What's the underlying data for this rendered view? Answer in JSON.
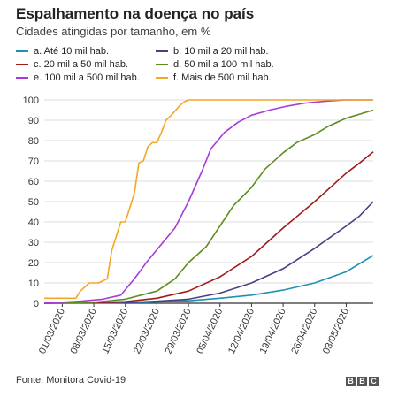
{
  "header": {
    "title": "Espalhamento na doença no país",
    "subtitle": "Cidades atingidas por tamanho, em %"
  },
  "footer": {
    "source": "Fonte: Monitora Covid-19",
    "logo_letters": [
      "B",
      "B",
      "C"
    ]
  },
  "chart_data": {
    "type": "line",
    "title": "Espalhamento na doença no país",
    "subtitle": "Cidades atingidas por tamanho, em %",
    "xlabel": "",
    "ylabel": "",
    "x_range": [
      "2020-02-26",
      "2020-05-09"
    ],
    "x_ticks": [
      "01/03/2020",
      "08/03/2020",
      "15/03/2020",
      "22/03/2020",
      "29/03/2020",
      "05/04/2020",
      "12/04/2020",
      "19/04/2020",
      "26/04/2020",
      "03/05/2020"
    ],
    "ylim": [
      0,
      100
    ],
    "y_ticks": [
      0,
      10,
      20,
      30,
      40,
      50,
      60,
      70,
      80,
      90,
      100
    ],
    "grid": true,
    "legend_placement": "top",
    "series": [
      {
        "name": "a. Até 10 mil hab.",
        "color": "#1f8fb4",
        "points": [
          [
            "2020-02-26",
            0
          ],
          [
            "2020-03-12",
            0.2
          ],
          [
            "2020-03-20",
            0.5
          ],
          [
            "2020-03-29",
            1.2
          ],
          [
            "2020-04-05",
            2.5
          ],
          [
            "2020-04-12",
            4
          ],
          [
            "2020-04-19",
            6.5
          ],
          [
            "2020-04-26",
            10
          ],
          [
            "2020-05-03",
            15.5
          ],
          [
            "2020-05-06",
            19.5
          ],
          [
            "2020-05-09",
            23.5
          ]
        ]
      },
      {
        "name": "b. 10 mil a 20 mil hab.",
        "color": "#4a3e87",
        "points": [
          [
            "2020-02-26",
            0
          ],
          [
            "2020-03-15",
            0.3
          ],
          [
            "2020-03-22",
            1
          ],
          [
            "2020-03-29",
            2
          ],
          [
            "2020-04-05",
            5
          ],
          [
            "2020-04-12",
            10
          ],
          [
            "2020-04-19",
            17
          ],
          [
            "2020-04-26",
            27
          ],
          [
            "2020-05-03",
            38
          ],
          [
            "2020-05-06",
            43
          ],
          [
            "2020-05-09",
            50
          ]
        ]
      },
      {
        "name": "c. 20 mil a 50 mil hab.",
        "color": "#a11c1c",
        "points": [
          [
            "2020-02-26",
            0
          ],
          [
            "2020-03-08",
            0.3
          ],
          [
            "2020-03-15",
            0.8
          ],
          [
            "2020-03-22",
            2.5
          ],
          [
            "2020-03-29",
            6
          ],
          [
            "2020-04-05",
            13
          ],
          [
            "2020-04-12",
            23
          ],
          [
            "2020-04-19",
            37
          ],
          [
            "2020-04-26",
            50
          ],
          [
            "2020-05-03",
            64
          ],
          [
            "2020-05-06",
            69
          ],
          [
            "2020-05-09",
            74.5
          ]
        ]
      },
      {
        "name": "d. 50 mil a 100 mil hab.",
        "color": "#5e8c1f",
        "points": [
          [
            "2020-02-26",
            0
          ],
          [
            "2020-03-08",
            0.5
          ],
          [
            "2020-03-15",
            2
          ],
          [
            "2020-03-22",
            6
          ],
          [
            "2020-03-26",
            12
          ],
          [
            "2020-03-29",
            20
          ],
          [
            "2020-04-02",
            28
          ],
          [
            "2020-04-05",
            38
          ],
          [
            "2020-04-08",
            48
          ],
          [
            "2020-04-12",
            57
          ],
          [
            "2020-04-15",
            66
          ],
          [
            "2020-04-19",
            74
          ],
          [
            "2020-04-22",
            79
          ],
          [
            "2020-04-26",
            83
          ],
          [
            "2020-04-29",
            87
          ],
          [
            "2020-05-03",
            91
          ],
          [
            "2020-05-06",
            93
          ],
          [
            "2020-05-09",
            95
          ]
        ]
      },
      {
        "name": "e. 100 mil a 500 mil hab.",
        "color": "#a73ad9",
        "points": [
          [
            "2020-02-26",
            0
          ],
          [
            "2020-03-05",
            1
          ],
          [
            "2020-03-10",
            2
          ],
          [
            "2020-03-14",
            4
          ],
          [
            "2020-03-17",
            12
          ],
          [
            "2020-03-20",
            21
          ],
          [
            "2020-03-23",
            29
          ],
          [
            "2020-03-26",
            37
          ],
          [
            "2020-03-29",
            50
          ],
          [
            "2020-04-01",
            65
          ],
          [
            "2020-04-03",
            76
          ],
          [
            "2020-04-06",
            84
          ],
          [
            "2020-04-09",
            89
          ],
          [
            "2020-04-12",
            92.5
          ],
          [
            "2020-04-16",
            95
          ],
          [
            "2020-04-20",
            97
          ],
          [
            "2020-04-24",
            98.5
          ],
          [
            "2020-04-29",
            99.5
          ],
          [
            "2020-05-03",
            100
          ],
          [
            "2020-05-09",
            100
          ]
        ]
      },
      {
        "name": "f. Mais de 500 mil hab.",
        "color": "#f5a623",
        "points": [
          [
            "2020-02-26",
            2.5
          ],
          [
            "2020-03-04",
            2.5
          ],
          [
            "2020-03-05",
            6
          ],
          [
            "2020-03-07",
            10
          ],
          [
            "2020-03-09",
            10
          ],
          [
            "2020-03-11",
            12
          ],
          [
            "2020-03-12",
            26
          ],
          [
            "2020-03-14",
            40
          ],
          [
            "2020-03-15",
            40
          ],
          [
            "2020-03-17",
            54
          ],
          [
            "2020-03-18",
            69
          ],
          [
            "2020-03-19",
            70
          ],
          [
            "2020-03-20",
            77
          ],
          [
            "2020-03-21",
            79
          ],
          [
            "2020-03-22",
            79
          ],
          [
            "2020-03-23",
            84
          ],
          [
            "2020-03-24",
            90
          ],
          [
            "2020-03-25",
            92
          ],
          [
            "2020-03-27",
            97
          ],
          [
            "2020-03-28",
            99
          ],
          [
            "2020-03-29",
            100
          ],
          [
            "2020-05-09",
            100
          ]
        ]
      }
    ]
  }
}
